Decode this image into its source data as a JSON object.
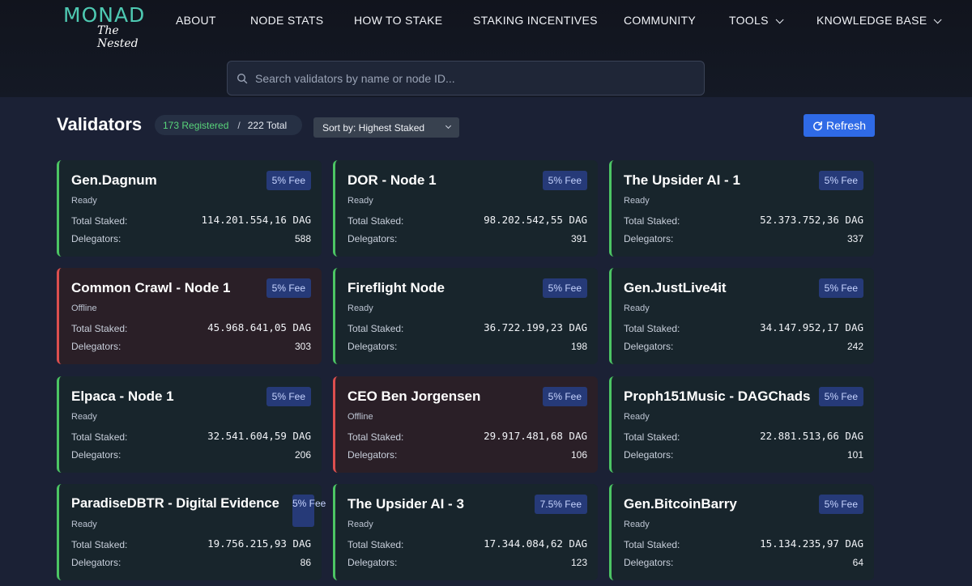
{
  "brand": {
    "name": "MONAD",
    "tagline": "The Nested"
  },
  "nav": {
    "items": [
      {
        "label": "ABOUT"
      },
      {
        "label": "NODE STATS"
      },
      {
        "label": "HOW TO STAKE"
      },
      {
        "label": "STAKING INCENTIVES"
      },
      {
        "label": "COMMUNITY"
      },
      {
        "label": "TOOLS"
      },
      {
        "label": "KNOWLEDGE BASE"
      }
    ]
  },
  "search": {
    "placeholder": "Search validators by name or node ID..."
  },
  "toolbar": {
    "title": "Validators",
    "registered": "173 Registered",
    "separator": "/",
    "total": "222 Total",
    "sort_label": "Sort by: Highest Staked",
    "refresh_label": "Refresh"
  },
  "card_labels": {
    "staked": "Total Staked:",
    "delegators": "Delegators:"
  },
  "validators": [
    {
      "name": "Gen.Dagnum",
      "status": "Ready",
      "fee": "5% Fee",
      "staked": "114.201.554,16 DAG",
      "delegators": "588"
    },
    {
      "name": "DOR - Node 1",
      "status": "Ready",
      "fee": "5% Fee",
      "staked": "98.202.542,55 DAG",
      "delegators": "391"
    },
    {
      "name": "The Upsider AI - 1",
      "status": "Ready",
      "fee": "5% Fee",
      "staked": "52.373.752,36 DAG",
      "delegators": "337"
    },
    {
      "name": "Common Crawl - Node 1",
      "status": "Offline",
      "fee": "5% Fee",
      "staked": "45.968.641,05 DAG",
      "delegators": "303"
    },
    {
      "name": "Fireflight Node",
      "status": "Ready",
      "fee": "5% Fee",
      "staked": "36.722.199,23 DAG",
      "delegators": "198"
    },
    {
      "name": "Gen.JustLive4it",
      "status": "Ready",
      "fee": "5% Fee",
      "staked": "34.147.952,17 DAG",
      "delegators": "242"
    },
    {
      "name": "Elpaca - Node 1",
      "status": "Ready",
      "fee": "5% Fee",
      "staked": "32.541.604,59 DAG",
      "delegators": "206"
    },
    {
      "name": "CEO Ben Jorgensen",
      "status": "Offline",
      "fee": "5% Fee",
      "staked": "29.917.481,68 DAG",
      "delegators": "106"
    },
    {
      "name": "Proph151Music - DAGChads",
      "status": "Ready",
      "fee": "5% Fee",
      "staked": "22.881.513,66 DAG",
      "delegators": "101"
    },
    {
      "name": "ParadiseDBTR - Digital Evidence",
      "status": "Ready",
      "fee": "5% Fee",
      "staked": "19.756.215,93 DAG",
      "delegators": "86"
    },
    {
      "name": "The Upsider AI - 3",
      "status": "Ready",
      "fee": "7.5% Fee",
      "staked": "17.344.084,62 DAG",
      "delegators": "123"
    },
    {
      "name": "Gen.BitcoinBarry",
      "status": "Ready",
      "fee": "5% Fee",
      "staked": "15.134.235,97 DAG",
      "delegators": "64"
    }
  ],
  "colors": {
    "accent": "#2f6ae6",
    "ready_border": "#4cc564",
    "offline_border": "#dc4f4f",
    "brand": "#4ec9b2"
  }
}
